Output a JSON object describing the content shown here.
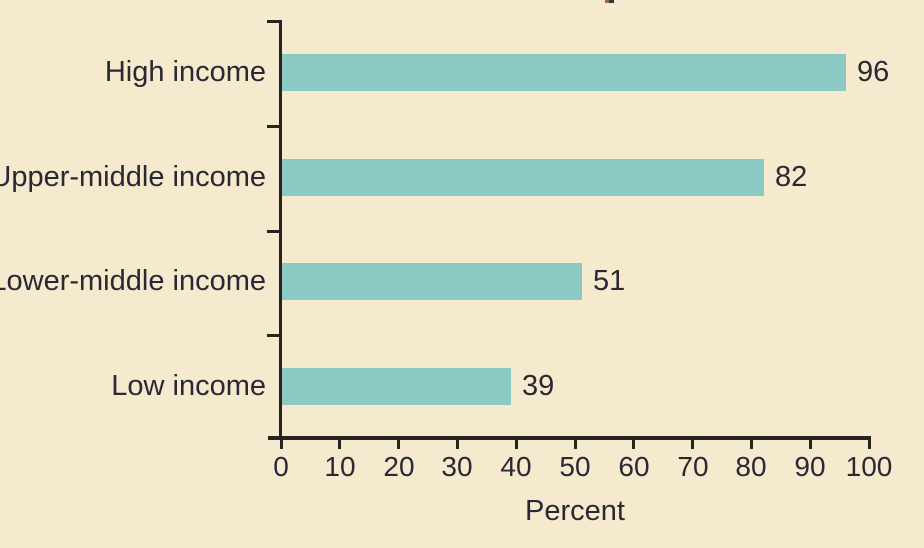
{
  "chart_data": {
    "type": "bar",
    "orientation": "horizontal",
    "categories": [
      "High income",
      "Upper-middle income",
      "Lower-middle income",
      "Low income"
    ],
    "values": [
      96,
      82,
      51,
      39
    ],
    "data_labels": [
      "96",
      "82",
      "51",
      "39"
    ],
    "title": "",
    "xlabel": "Percent",
    "ylabel": "",
    "xlim": [
      0,
      100
    ],
    "x_ticks": [
      0,
      10,
      20,
      30,
      40,
      50,
      60,
      70,
      80,
      90,
      100
    ],
    "grid": false,
    "legend": false,
    "data_labels_position": "end-of-bar",
    "colors": {
      "bar": "#8cc9c2",
      "background": "#f5eacd",
      "text": "#2a2933",
      "axis": "#262420"
    }
  }
}
